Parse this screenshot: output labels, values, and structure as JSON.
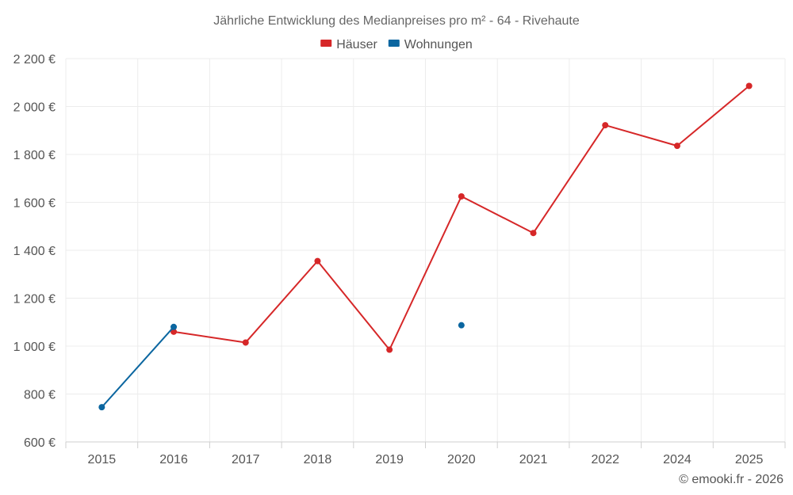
{
  "chart_data": {
    "type": "line",
    "title": "Jährliche Entwicklung des Medianpreises pro m² - 64 - Rivehaute",
    "categories": [
      "2015",
      "2016",
      "2017",
      "2018",
      "2019",
      "2020",
      "2021",
      "2022",
      "2024",
      "2025"
    ],
    "series": [
      {
        "name": "Häuser",
        "color": "#d62728",
        "values": [
          null,
          1060,
          1015,
          1355,
          985,
          1625,
          1472,
          1922,
          1836,
          2086
        ]
      },
      {
        "name": "Wohnungen",
        "color": "#0b66a0",
        "values": [
          745,
          1080,
          null,
          null,
          null,
          1087,
          null,
          null,
          null,
          null
        ]
      }
    ],
    "ylim": [
      600,
      2200
    ],
    "yticks": [
      600,
      800,
      1000,
      1200,
      1400,
      1600,
      1800,
      2000,
      2200
    ],
    "ytick_labels": [
      "600 €",
      "800 €",
      "1 000 €",
      "1 200 €",
      "1 400 €",
      "1 600 €",
      "1 800 €",
      "2 000 €",
      "2 200 €"
    ],
    "xlabel": "",
    "ylabel": "",
    "grid": true,
    "legend_position": "top-center"
  },
  "credit": "© emooki.fr - 2026"
}
